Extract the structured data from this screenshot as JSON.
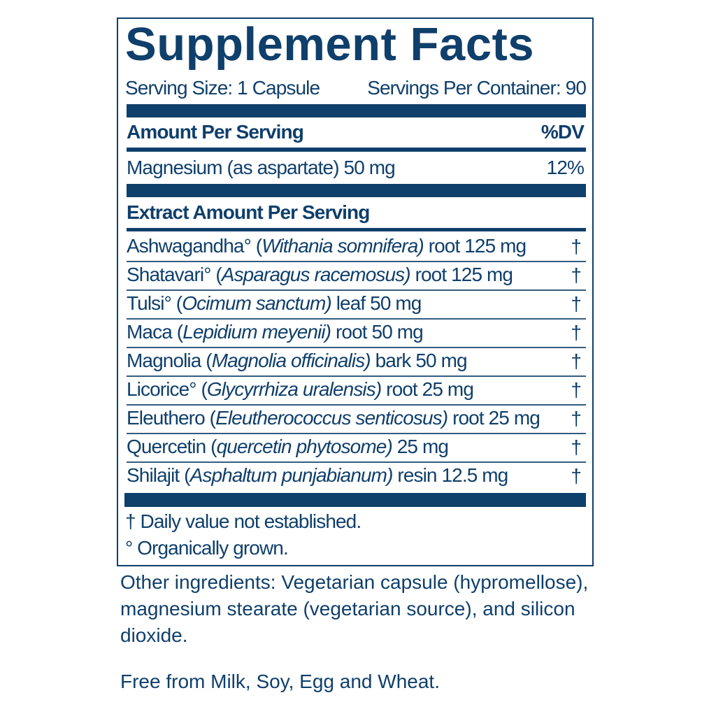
{
  "panel": {
    "title": "Supplement Facts",
    "serving_size": "Serving Size: 1 Capsule",
    "servings_per_container": "Servings Per Container: 90",
    "amount_header": "Amount Per Serving",
    "dv_header": "%DV",
    "nutrient": {
      "label": "Magnesium (as aspartate) 50 mg",
      "dv": "12%"
    },
    "extract_header": "Extract Amount Per Serving",
    "ingredients": [
      {
        "name": "Ashwagandha° (",
        "latin": "Withania somnifera)",
        "rest": " root 125 mg",
        "dv": "†"
      },
      {
        "name": "Shatavari° (",
        "latin": "Asparagus racemosus)",
        "rest": " root 125 mg",
        "dv": "†"
      },
      {
        "name": "Tulsi° (",
        "latin": "Ocimum sanctum)",
        "rest": " leaf 50 mg",
        "dv": "†"
      },
      {
        "name": "Maca (",
        "latin": "Lepidium meyenii)",
        "rest": " root 50 mg",
        "dv": "†"
      },
      {
        "name": "Magnolia (",
        "latin": "Magnolia officinalis)",
        "rest": " bark 50 mg",
        "dv": "†"
      },
      {
        "name": "Licorice° (",
        "latin": "Glycyrrhiza uralensis)",
        "rest": " root 25 mg",
        "dv": "†"
      },
      {
        "name": "Eleuthero (",
        "latin": "Eleutherococcus senticosus)",
        "rest": " root 25 mg",
        "dv": "†"
      },
      {
        "name": "Quercetin (",
        "latin": "quercetin phytosome)",
        "rest": " 25 mg",
        "dv": "†"
      },
      {
        "name": "Shilajit (",
        "latin": "Asphaltum punjabianum)",
        "rest": " resin 12.5 mg",
        "dv": "†"
      }
    ],
    "footnotes": [
      "† Daily value not established.",
      "° Organically grown."
    ]
  },
  "other_ingredients": "Other ingredients: Vegetarian capsule (hypromellose), magnesium stearate (vegetarian source), and silicon dioxide.",
  "free_from": "Free from Milk, Soy, Egg and Wheat.",
  "colors": {
    "brand": "#0f3f6b"
  }
}
